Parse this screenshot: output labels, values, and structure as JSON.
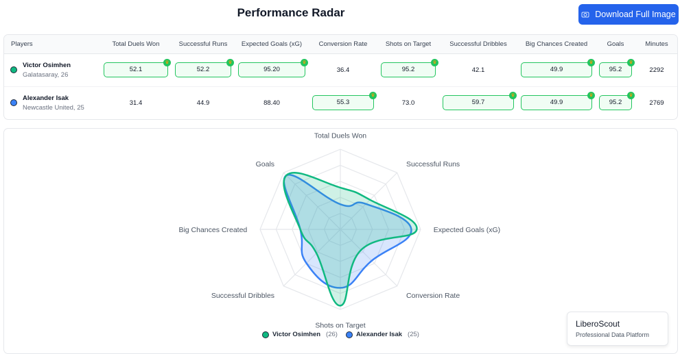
{
  "header": {
    "title": "Performance Radar",
    "download_label": "Download Full Image",
    "download_icon": "camera-icon"
  },
  "table": {
    "columns": [
      "Players",
      "Total Duels Won",
      "Successful Runs",
      "Expected Goals (xG)",
      "Conversion Rate",
      "Shots on Target",
      "Successful Dribbles",
      "Big Chances Created",
      "Goals",
      "Minutes"
    ],
    "rows": [
      {
        "name": "Victor Osimhen",
        "team": "Galatasaray, 26",
        "color": "#10b981",
        "values": [
          "52.1",
          "52.2",
          "95.20",
          "36.4",
          "95.2",
          "42.1",
          "49.9",
          "95.2",
          "2292"
        ],
        "best": [
          true,
          true,
          true,
          false,
          true,
          false,
          true,
          true,
          false
        ]
      },
      {
        "name": "Alexander Isak",
        "team": "Newcastle United, 25",
        "color": "#3b82f6",
        "values": [
          "31.4",
          "44.9",
          "88.40",
          "55.3",
          "73.0",
          "59.7",
          "49.9",
          "95.2",
          "2769"
        ],
        "best": [
          false,
          false,
          false,
          true,
          false,
          true,
          true,
          true,
          false
        ]
      }
    ]
  },
  "chart_data": {
    "type": "radar",
    "axes": [
      "Total Duels Won",
      "Successful Runs",
      "Expected Goals (xG)",
      "Conversion Rate",
      "Shots on Target",
      "Successful Dribbles",
      "Big Chances Created",
      "Goals"
    ],
    "range": [
      0,
      100
    ],
    "grid": true,
    "legend_placement": "bottom",
    "series": [
      {
        "name": "Victor Osimhen",
        "age": "(26)",
        "color": "#10b981",
        "values": [
          52.1,
          52.2,
          95.2,
          36.4,
          95.2,
          42.1,
          49.9,
          95.2
        ]
      },
      {
        "name": "Alexander Isak",
        "age": "(25)",
        "color": "#3b82f6",
        "values": [
          31.4,
          44.9,
          88.4,
          55.3,
          73.0,
          59.7,
          49.9,
          95.2
        ]
      }
    ]
  },
  "brand": {
    "name": "LiberoScout",
    "tagline": "Professional Data Platform"
  }
}
